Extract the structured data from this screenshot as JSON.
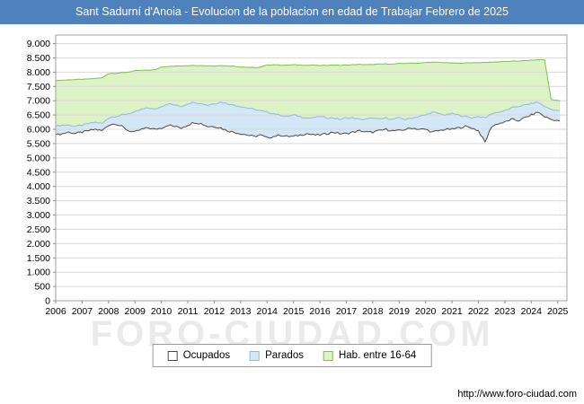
{
  "header": {
    "title": "Sant Sadurní d'Anoia - Evolucion de la poblacion en edad de Trabajar Febrero de 2025",
    "bg": "#4f81bd"
  },
  "watermark": {
    "text": "FORO-CIUDAD.COM"
  },
  "footer": {
    "url": "http://www.foro-ciudad.com"
  },
  "legend": {
    "items": [
      {
        "label": "Ocupados",
        "fill": "#ffffff",
        "stroke": "#4a4a4a"
      },
      {
        "label": "Parados",
        "fill": "#d4e7f6",
        "stroke": "#92b9dc"
      },
      {
        "label": "Hab. entre 16-64",
        "fill": "#ddf3c6",
        "stroke": "#7fbf4d"
      }
    ]
  },
  "chart_data": {
    "type": "area",
    "title": "Sant Sadurní d'Anoia - Evolucion de la poblacion en edad de Trabajar Febrero de 2025",
    "xlabel": "",
    "ylabel": "",
    "grid": true,
    "legend_position": "bottom",
    "ylim": [
      0,
      9300
    ],
    "y_tick_step": 500,
    "y_tick_labels": [
      "0",
      "500",
      "1.000",
      "1.500",
      "2.000",
      "2.500",
      "3.000",
      "3.500",
      "4.000",
      "4.500",
      "5.000",
      "5.500",
      "6.000",
      "6.500",
      "7.000",
      "7.500",
      "8.000",
      "8.500",
      "9.000"
    ],
    "x_ticks": [
      2006,
      2007,
      2008,
      2009,
      2010,
      2011,
      2012,
      2013,
      2014,
      2015,
      2016,
      2017,
      2018,
      2019,
      2020,
      2021,
      2022,
      2023,
      2024,
      2025
    ],
    "x": [
      2006,
      2006.25,
      2006.5,
      2006.75,
      2007,
      2007.25,
      2007.5,
      2007.75,
      2008,
      2008.25,
      2008.5,
      2008.75,
      2009,
      2009.25,
      2009.5,
      2009.75,
      2010,
      2010.25,
      2010.5,
      2010.75,
      2011,
      2011.25,
      2011.5,
      2011.75,
      2012,
      2012.25,
      2012.5,
      2012.75,
      2013,
      2013.25,
      2013.5,
      2013.75,
      2014,
      2014.25,
      2014.5,
      2014.75,
      2015,
      2015.25,
      2015.5,
      2015.75,
      2016,
      2016.25,
      2016.5,
      2016.75,
      2017,
      2017.25,
      2017.5,
      2017.75,
      2018,
      2018.25,
      2018.5,
      2018.75,
      2019,
      2019.25,
      2019.5,
      2019.75,
      2020,
      2020.25,
      2020.5,
      2020.75,
      2021,
      2021.25,
      2021.5,
      2021.75,
      2022,
      2022.25,
      2022.5,
      2022.75,
      2023,
      2023.25,
      2023.5,
      2023.75,
      2024,
      2024.25,
      2024.5,
      2024.75,
      2025.08
    ],
    "series": [
      {
        "name": "Ocupados",
        "fill": "#ffffff",
        "stroke": "#4a4a4a",
        "values": [
          5800,
          5850,
          5900,
          5850,
          5900,
          5950,
          6000,
          5950,
          6150,
          6200,
          6100,
          5950,
          5900,
          6000,
          6050,
          6000,
          6050,
          6150,
          6100,
          6050,
          6150,
          6250,
          6200,
          6100,
          6100,
          6050,
          5950,
          5900,
          5850,
          5800,
          5750,
          5800,
          5700,
          5750,
          5800,
          5750,
          5750,
          5800,
          5850,
          5800,
          5800,
          5850,
          5900,
          5850,
          5850,
          5900,
          5950,
          5900,
          5900,
          5950,
          6000,
          5950,
          5950,
          6000,
          6050,
          6000,
          6000,
          5900,
          5950,
          6000,
          6000,
          6050,
          6100,
          6050,
          5950,
          5550,
          6100,
          6200,
          6250,
          6350,
          6300,
          6400,
          6500,
          6600,
          6450,
          6350,
          6300
        ]
      },
      {
        "name": "Parados",
        "stacked_on": "Ocupados",
        "fill": "#d4e7f6",
        "stroke": "#92b9dc",
        "values": [
          300,
          300,
          250,
          250,
          250,
          250,
          250,
          250,
          250,
          250,
          400,
          600,
          700,
          700,
          700,
          700,
          750,
          750,
          750,
          750,
          750,
          700,
          700,
          750,
          800,
          900,
          950,
          950,
          950,
          950,
          950,
          850,
          900,
          800,
          700,
          700,
          750,
          650,
          550,
          600,
          650,
          550,
          500,
          500,
          550,
          500,
          400,
          450,
          500,
          400,
          400,
          400,
          450,
          350,
          350,
          450,
          500,
          700,
          600,
          500,
          550,
          450,
          350,
          350,
          500,
          850,
          450,
          400,
          400,
          400,
          500,
          450,
          400,
          350,
          350,
          350,
          350
        ]
      },
      {
        "name": "Hab. entre 16-64",
        "fill": "#ddf3c6",
        "stroke": "#7fbf4d",
        "values": [
          7700,
          7720,
          7730,
          7740,
          7750,
          7760,
          7780,
          7800,
          7950,
          7960,
          7980,
          8000,
          8050,
          8060,
          8070,
          8080,
          8180,
          8200,
          8210,
          8220,
          8230,
          8240,
          8230,
          8220,
          8220,
          8230,
          8220,
          8210,
          8180,
          8170,
          8160,
          8170,
          8250,
          8260,
          8250,
          8240,
          8260,
          8250,
          8240,
          8250,
          8230,
          8240,
          8250,
          8240,
          8250,
          8260,
          8270,
          8260,
          8270,
          8280,
          8290,
          8280,
          8300,
          8310,
          8320,
          8310,
          8340,
          8350,
          8340,
          8330,
          8320,
          8310,
          8320,
          8330,
          8330,
          8340,
          8350,
          8360,
          8370,
          8380,
          8390,
          8400,
          8420,
          8430,
          8440,
          7050,
          7000
        ]
      }
    ]
  }
}
